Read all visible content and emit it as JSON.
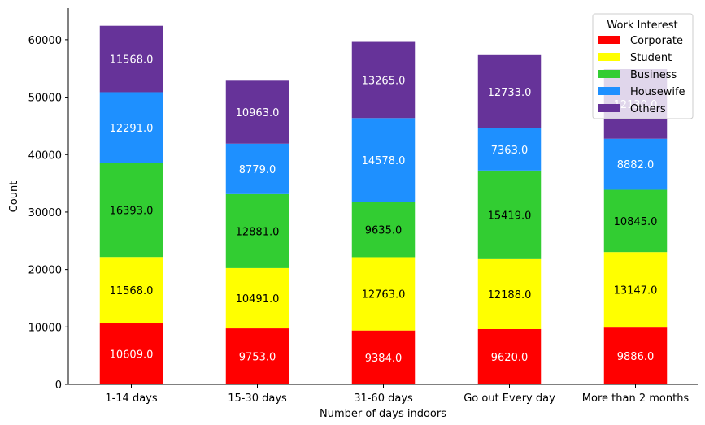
{
  "chart_data": {
    "type": "bar",
    "stacked": true,
    "categories": [
      "1-14 days",
      "15-30 days",
      "31-60 days",
      "Go out Every day",
      "More than 2 months"
    ],
    "series": [
      {
        "name": "Corporate",
        "color": "#ff0000",
        "label_color": "#ffffff",
        "values": [
          10609.0,
          9753.0,
          9384.0,
          9620.0,
          9886.0
        ],
        "labels": [
          "10609.0",
          "9753.0",
          "9384.0",
          "9620.0",
          "9886.0"
        ]
      },
      {
        "name": "Student",
        "color": "#ffff00",
        "label_color": "#000000",
        "values": [
          11568.0,
          10491.0,
          12763.0,
          12188.0,
          13147.0
        ],
        "labels": [
          "11568.0",
          "10491.0",
          "12763.0",
          "12188.0",
          "13147.0"
        ]
      },
      {
        "name": "Business",
        "color": "#32cd32",
        "label_color": "#000000",
        "values": [
          16393.0,
          12881.0,
          9635.0,
          15419.0,
          10845.0
        ],
        "labels": [
          "16393.0",
          "12881.0",
          "9635.0",
          "15419.0",
          "10845.0"
        ]
      },
      {
        "name": "Housewife",
        "color": "#1e90ff",
        "label_color": "#ffffff",
        "values": [
          12291.0,
          8779.0,
          14578.0,
          7363.0,
          8882.0
        ],
        "labels": [
          "12291.0",
          "8779.0",
          "14578.0",
          "7363.0",
          "8882.0"
        ]
      },
      {
        "name": "Others",
        "color": "#663399",
        "label_color": "#ffffff",
        "values": [
          11568.0,
          10963.0,
          13265.0,
          12733.0,
          12130.0
        ],
        "labels": [
          "11568.0",
          "10963.0",
          "13265.0",
          "12733.0",
          "12130.0"
        ]
      }
    ],
    "xlabel": "Number of days indoors",
    "ylabel": "Count",
    "ylim": [
      0,
      65500
    ],
    "yticks": [
      0,
      10000,
      20000,
      30000,
      40000,
      50000,
      60000
    ],
    "ytick_labels": [
      "0",
      "10000",
      "20000",
      "30000",
      "40000",
      "50000",
      "60000"
    ],
    "grid": false,
    "legend": {
      "title": "Work Interest",
      "placement": "top-right"
    }
  }
}
